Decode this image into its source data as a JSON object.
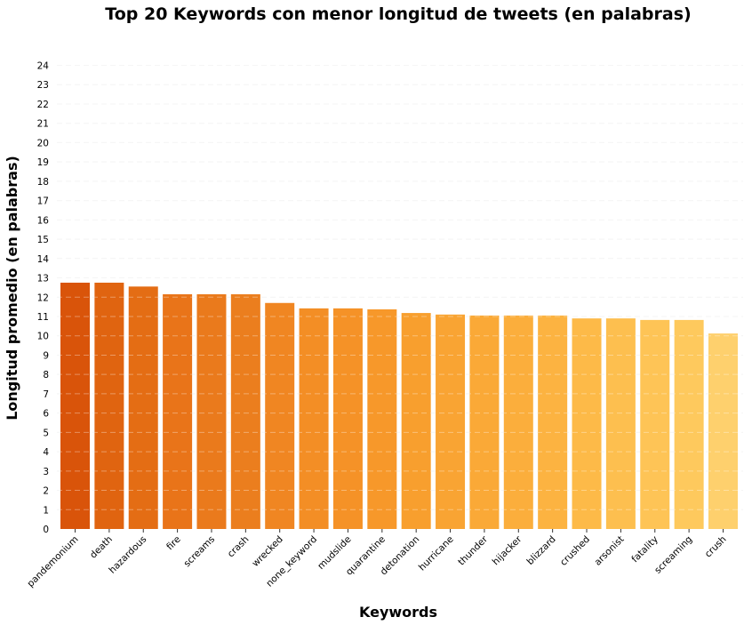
{
  "chart_data": {
    "type": "bar",
    "title": "Top 20 Keywords con menor longitud de tweets (en palabras)",
    "xlabel": "Keywords",
    "ylabel": "Longitud promedio (en palabras)",
    "categories": [
      "pandemonium",
      "death",
      "hazardous",
      "fire",
      "screams",
      "crash",
      "wrecked",
      "none_keyword",
      "mudslide",
      "quarantine",
      "detonation",
      "hurricane",
      "thunder",
      "hijacker",
      "blizzard",
      "crushed",
      "arsonist",
      "fatality",
      "screaming",
      "crush"
    ],
    "values": [
      12.75,
      12.75,
      12.55,
      12.15,
      12.15,
      12.15,
      11.7,
      11.42,
      11.42,
      11.37,
      11.18,
      11.1,
      11.05,
      11.05,
      11.05,
      10.9,
      10.9,
      10.82,
      10.82,
      10.12
    ],
    "ylim": [
      0,
      24
    ],
    "yticks": [
      0,
      1,
      2,
      3,
      4,
      5,
      6,
      7,
      8,
      9,
      10,
      11,
      12,
      13,
      14,
      15,
      16,
      17,
      18,
      19,
      20,
      21,
      22,
      23,
      24
    ],
    "grid": true,
    "colors": [
      "#d9540a",
      "#e06410",
      "#e46d14",
      "#e97419",
      "#ea7a1c",
      "#eb7e1e",
      "#f08622",
      "#f38e25",
      "#f59227",
      "#f7982a",
      "#f89f2e",
      "#f9a433",
      "#faa937",
      "#fbae3c",
      "#fcb341",
      "#fdba48",
      "#fdbf4f",
      "#fec456",
      "#fec95d",
      "#fed06d"
    ]
  }
}
